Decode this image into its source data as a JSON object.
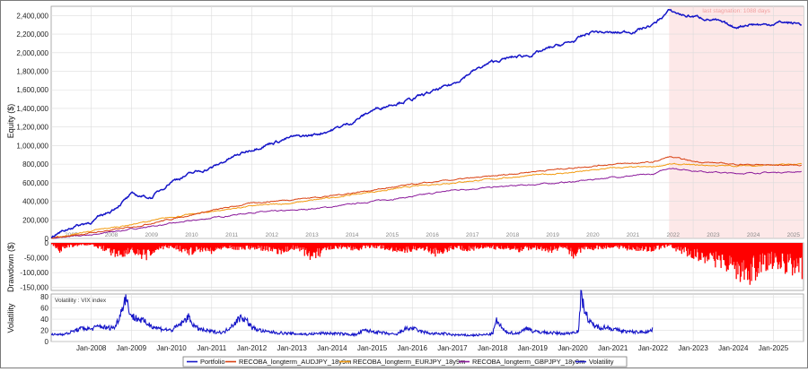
{
  "chart_data": [
    {
      "type": "line",
      "name": "equity",
      "ylabel": "Equity ($)",
      "ylim": [
        0,
        2500000
      ],
      "yticks": [
        0,
        200000,
        400000,
        600000,
        800000,
        1000000,
        1200000,
        1400000,
        1600000,
        1800000,
        2000000,
        2200000,
        2400000
      ],
      "ytick_labels": [
        "0",
        "200,000",
        "400,000",
        "600,000",
        "800,000",
        "1,000,000",
        "1,200,000",
        "1,400,000",
        "1,600,000",
        "1,800,000",
        "2,000,000",
        "2,200,000",
        "2,400,000"
      ],
      "xlim": [
        2007.0,
        2025.75
      ],
      "year_labels": [
        "2007",
        "2008",
        "2009",
        "2010",
        "2011",
        "2012",
        "2013",
        "2014",
        "2015",
        "2016",
        "2017",
        "2018",
        "2019",
        "2020",
        "2021",
        "2022",
        "2023",
        "2024",
        "2025"
      ],
      "grid": true,
      "annotation": {
        "text": "last stagnation: 1088 days",
        "x_start": 2022.4,
        "x_end": 2025.75,
        "color": "#fde8e8"
      },
      "series": [
        {
          "name": "Portfolio",
          "color": "#1515c8",
          "x": [
            2007.0,
            2007.5,
            2008.0,
            2008.5,
            2009.0,
            2009.5,
            2010.0,
            2010.5,
            2011.0,
            2011.5,
            2012.0,
            2012.5,
            2013.0,
            2013.5,
            2014.0,
            2014.5,
            2015.0,
            2015.5,
            2016.0,
            2016.5,
            2017.0,
            2017.5,
            2018.0,
            2018.5,
            2019.0,
            2019.5,
            2020.0,
            2020.5,
            2021.0,
            2021.5,
            2022.0,
            2022.4,
            2022.8,
            2023.2,
            2023.6,
            2024.0,
            2024.4,
            2024.8,
            2025.2,
            2025.7
          ],
          "y": [
            20000,
            120000,
            180000,
            300000,
            470000,
            440000,
            620000,
            700000,
            760000,
            870000,
            960000,
            1030000,
            1090000,
            1110000,
            1170000,
            1250000,
            1380000,
            1450000,
            1500000,
            1580000,
            1660000,
            1800000,
            1900000,
            1950000,
            1980000,
            2060000,
            2120000,
            2230000,
            2210000,
            2230000,
            2300000,
            2450000,
            2400000,
            2380000,
            2340000,
            2270000,
            2310000,
            2300000,
            2330000,
            2310000
          ]
        },
        {
          "name": "RECOBA_longterm_AUDJPY_18y9m",
          "color": "#d94010",
          "x": [
            2007.0,
            2008.0,
            2009.0,
            2010.0,
            2011.0,
            2012.0,
            2013.0,
            2014.0,
            2015.0,
            2016.0,
            2017.0,
            2018.0,
            2019.0,
            2020.0,
            2021.0,
            2022.0,
            2022.4,
            2023.0,
            2024.0,
            2025.0,
            2025.7
          ],
          "y": [
            0,
            60000,
            120000,
            210000,
            300000,
            380000,
            420000,
            460000,
            520000,
            580000,
            630000,
            670000,
            720000,
            760000,
            800000,
            820000,
            880000,
            830000,
            800000,
            790000,
            790000
          ]
        },
        {
          "name": "RECOBA_longterm_EURJPY_18y9m",
          "color": "#f39c12",
          "x": [
            2007.0,
            2008.0,
            2009.0,
            2010.0,
            2011.0,
            2012.0,
            2013.0,
            2014.0,
            2015.0,
            2016.0,
            2017.0,
            2018.0,
            2019.0,
            2020.0,
            2021.0,
            2022.0,
            2022.4,
            2023.0,
            2024.0,
            2025.0,
            2025.7
          ],
          "y": [
            0,
            80000,
            150000,
            230000,
            290000,
            350000,
            380000,
            440000,
            500000,
            560000,
            600000,
            640000,
            680000,
            710000,
            760000,
            770000,
            800000,
            790000,
            780000,
            790000,
            800000
          ]
        },
        {
          "name": "RECOBA_longterm_GBPJPY_18y9m",
          "color": "#8b1a9b",
          "x": [
            2007.0,
            2008.0,
            2009.0,
            2010.0,
            2011.0,
            2012.0,
            2013.0,
            2014.0,
            2015.0,
            2016.0,
            2017.0,
            2018.0,
            2019.0,
            2020.0,
            2021.0,
            2022.0,
            2022.4,
            2023.0,
            2024.0,
            2025.0,
            2025.7
          ],
          "y": [
            0,
            40000,
            100000,
            160000,
            220000,
            280000,
            300000,
            340000,
            400000,
            450000,
            520000,
            550000,
            580000,
            610000,
            660000,
            690000,
            760000,
            730000,
            700000,
            710000,
            720000
          ]
        }
      ]
    },
    {
      "type": "bar",
      "name": "drawdown",
      "ylabel": "Drawdown ($)",
      "ylim": [
        -160000,
        0
      ],
      "yticks": [
        0,
        -50000,
        -100000,
        -150000
      ],
      "ytick_labels": [
        "0",
        "-50,000",
        "-100,000",
        "-150,000"
      ],
      "color": "#ff0000",
      "x": [
        2007.0,
        2007.2,
        2007.4,
        2007.7,
        2008.0,
        2008.2,
        2008.5,
        2008.7,
        2009.0,
        2009.2,
        2009.5,
        2009.8,
        2010.0,
        2010.4,
        2010.8,
        2011.0,
        2011.3,
        2011.7,
        2012.0,
        2012.4,
        2012.8,
        2013.0,
        2013.2,
        2013.5,
        2013.8,
        2014.2,
        2014.6,
        2015.0,
        2015.4,
        2015.8,
        2016.2,
        2016.6,
        2017.0,
        2017.4,
        2017.8,
        2018.2,
        2018.6,
        2019.0,
        2019.4,
        2019.8,
        2020.0,
        2020.3,
        2020.7,
        2021.0,
        2021.4,
        2021.8,
        2022.2,
        2022.4,
        2022.6,
        2022.8,
        2023.0,
        2023.2,
        2023.4,
        2023.6,
        2023.8,
        2024.0,
        2024.2,
        2024.3,
        2024.5,
        2024.7,
        2024.9,
        2025.1,
        2025.3,
        2025.5,
        2025.7
      ],
      "y": [
        -5000,
        -30000,
        -15000,
        -10000,
        -8000,
        -20000,
        -40000,
        -50000,
        -30000,
        -70000,
        -45000,
        -20000,
        -15000,
        -40000,
        -25000,
        -35000,
        -15000,
        -25000,
        -20000,
        -30000,
        -40000,
        -20000,
        -30000,
        -60000,
        -35000,
        -20000,
        -25000,
        -15000,
        -25000,
        -35000,
        -20000,
        -45000,
        -20000,
        -30000,
        -15000,
        -25000,
        -30000,
        -20000,
        -35000,
        -15000,
        -55000,
        -25000,
        -20000,
        -15000,
        -25000,
        -30000,
        -20000,
        -10000,
        -30000,
        -40000,
        -50000,
        -60000,
        -70000,
        -80000,
        -90000,
        -110000,
        -125000,
        -140000,
        -120000,
        -100000,
        -80000,
        -90000,
        -105000,
        -100000,
        -120000
      ]
    },
    {
      "type": "line",
      "name": "volatility",
      "title": "Volatility : VIX index",
      "ylabel": "Volatility",
      "ylim": [
        0,
        85
      ],
      "yticks": [
        0,
        20,
        40,
        60,
        80
      ],
      "ytick_labels": [
        "0",
        "20",
        "40",
        "60",
        "80"
      ],
      "xlim": [
        2007.0,
        2025.75
      ],
      "xtick_positions": [
        2008,
        2009,
        2010,
        2011,
        2012,
        2013,
        2014,
        2015,
        2016,
        2017,
        2018,
        2019,
        2020,
        2021,
        2022,
        2023,
        2024,
        2025
      ],
      "xtick_labels": [
        "Jan-2008",
        "Jan-2009",
        "Jan-2010",
        "Jan-2011",
        "Jan-2012",
        "Jan-2013",
        "Jan-2014",
        "Jan-2015",
        "Jan-2016",
        "Jan-2017",
        "Jan-2018",
        "Jan-2019",
        "Jan-2020",
        "Jan-2021",
        "Jan-2022",
        "Jan-2023",
        "Jan-2024",
        "Jan-2025"
      ],
      "color": "#1515c8",
      "x": [
        2007.0,
        2007.2,
        2007.4,
        2007.6,
        2007.8,
        2008.0,
        2008.2,
        2008.4,
        2008.6,
        2008.75,
        2008.85,
        2009.0,
        2009.2,
        2009.4,
        2009.6,
        2009.8,
        2010.0,
        2010.3,
        2010.4,
        2010.6,
        2010.8,
        2011.0,
        2011.3,
        2011.6,
        2011.75,
        2011.9,
        2012.0,
        2012.3,
        2012.6,
        2012.8,
        2013.0,
        2013.4,
        2013.8,
        2014.2,
        2014.6,
        2014.8,
        2015.0,
        2015.4,
        2015.6,
        2015.8,
        2016.0,
        2016.2,
        2016.5,
        2016.8,
        2017.0,
        2017.4,
        2017.8,
        2018.0,
        2018.1,
        2018.3,
        2018.6,
        2018.9,
        2019.0,
        2019.4,
        2019.8,
        2020.0,
        2020.15,
        2020.2,
        2020.4,
        2020.6,
        2020.9,
        2021.0,
        2021.3,
        2021.6,
        2021.9,
        2022.0
      ],
      "y": [
        12,
        13,
        14,
        20,
        24,
        22,
        28,
        24,
        26,
        55,
        80,
        45,
        40,
        32,
        25,
        22,
        20,
        35,
        45,
        25,
        20,
        18,
        16,
        35,
        45,
        35,
        25,
        18,
        16,
        15,
        14,
        13,
        15,
        14,
        12,
        20,
        18,
        14,
        12,
        22,
        24,
        18,
        14,
        14,
        12,
        11,
        12,
        14,
        37,
        18,
        14,
        25,
        18,
        16,
        14,
        16,
        20,
        82,
        35,
        26,
        25,
        22,
        18,
        17,
        18,
        22
      ]
    }
  ],
  "legend": {
    "items": [
      {
        "label": "Portfolio",
        "color": "#1515c8"
      },
      {
        "label": "RECOBA_longterm_AUDJPY_18y9m",
        "color": "#d94010"
      },
      {
        "label": "RECOBA_longterm_EURJPY_18y9m",
        "color": "#f39c12"
      },
      {
        "label": "RECOBA_longterm_GBPJPY_18y9m",
        "color": "#8b1a9b"
      },
      {
        "label": "Volatility",
        "color": "#1515c8"
      }
    ]
  }
}
